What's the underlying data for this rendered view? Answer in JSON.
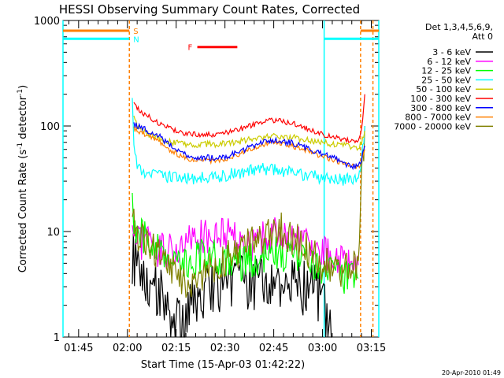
{
  "chart_data": {
    "type": "line",
    "title": "HESSI Observing Summary Count Rates, Corrected",
    "xlabel": "Start Time (15-Apr-03 01:42:22)",
    "ylabel_main": "Corrected Count Rate (s",
    "ylabel_sup1": "-1",
    "ylabel_mid": " detector",
    "ylabel_sup2": "-1",
    "ylabel_end": ")",
    "yscale": "log",
    "ylim": [
      1,
      1000
    ],
    "xlim_minutes": [
      100.2,
      197.3
    ],
    "x_ticks": [
      {
        "label": "01:45",
        "minutes": 105
      },
      {
        "label": "02:00",
        "minutes": 120
      },
      {
        "label": "02:15",
        "minutes": 135
      },
      {
        "label": "02:30",
        "minutes": 150
      },
      {
        "label": "02:45",
        "minutes": 165
      },
      {
        "label": "03:00",
        "minutes": 180
      },
      {
        "label": "03:15",
        "minutes": 195
      }
    ],
    "y_ticks": [
      {
        "label": "1",
        "value": 1
      },
      {
        "label": "10",
        "value": 10
      },
      {
        "label": "100",
        "value": 100
      },
      {
        "label": "1000",
        "value": 1000
      }
    ],
    "legend_header": [
      "Det 1,3,4,5,6,9,",
      "Att 0"
    ],
    "legend_position": "right",
    "series": [
      {
        "name": "3 - 6 keV",
        "color": "#000000",
        "x": [
          121.5,
          122.5,
          124,
          126,
          128,
          130,
          132,
          134,
          136,
          138,
          140,
          142,
          144,
          146,
          148,
          150,
          152,
          154,
          156,
          158,
          160,
          162,
          164,
          166,
          168,
          170,
          172,
          174,
          176,
          178,
          180,
          181,
          182,
          183
        ],
        "y": [
          6,
          5,
          4.5,
          3.8,
          3.2,
          2.7,
          2.1,
          1.5,
          1.2,
          1.3,
          2.0,
          1.7,
          2.5,
          3.2,
          2.8,
          3.5,
          2.7,
          3.3,
          3.0,
          2.8,
          3.1,
          3.6,
          3.4,
          3.0,
          3.3,
          3.6,
          3.2,
          3.0,
          3.1,
          2.9,
          2.0,
          1.5,
          1.2,
          1.0
        ]
      },
      {
        "name": "6 - 12 keV",
        "color": "#ff00ff",
        "x": [
          121.5,
          122,
          124,
          126,
          128,
          130,
          132,
          134,
          136,
          138,
          140,
          142,
          144,
          146,
          148,
          150,
          152,
          154,
          156,
          158,
          160,
          162,
          164,
          166,
          168,
          170,
          172,
          174,
          176,
          178,
          180,
          182,
          184,
          186,
          188,
          190,
          191
        ],
        "y": [
          8,
          8.5,
          8,
          7.5,
          7,
          6.8,
          6.5,
          6.5,
          7,
          7.5,
          8,
          8.5,
          9,
          10,
          10.5,
          9.5,
          9,
          8.5,
          7.5,
          7,
          7.5,
          8.5,
          9.5,
          10,
          10,
          9.5,
          9,
          8,
          7.5,
          7,
          6.5,
          6,
          5.5,
          5.2,
          5,
          4.8,
          4.8
        ]
      },
      {
        "name": "12 - 25 keV",
        "color": "#00ff00",
        "x": [
          121.5,
          122,
          123,
          124,
          126,
          128,
          130,
          132,
          134,
          136,
          138,
          140,
          142,
          144,
          146,
          148,
          150,
          152,
          154,
          156,
          158,
          160,
          162,
          164,
          166,
          168,
          170,
          172,
          174,
          176,
          178,
          180,
          182,
          184,
          186,
          188,
          190,
          191
        ],
        "y": [
          18,
          12,
          10,
          9.5,
          8.5,
          7.5,
          6.5,
          5.8,
          5.3,
          5.0,
          5.0,
          5.2,
          5.5,
          5.8,
          5.8,
          5.5,
          5.3,
          5.2,
          5.0,
          5.0,
          5.2,
          5.5,
          5.8,
          6.0,
          6.0,
          5.8,
          5.6,
          5.4,
          5.2,
          5.0,
          4.8,
          4.5,
          4.3,
          4.0,
          3.8,
          3.7,
          3.6,
          3.6
        ]
      },
      {
        "name": "25 - 50 keV",
        "color": "#00ffff",
        "x": [
          121.5,
          122,
          123,
          124,
          126,
          128,
          130,
          132,
          134,
          136,
          138,
          140,
          142,
          144,
          146,
          148,
          150,
          152,
          154,
          156,
          158,
          160,
          162,
          164,
          166,
          168,
          170,
          172,
          174,
          176,
          178,
          180,
          182,
          184,
          186,
          188,
          189,
          190,
          191,
          192,
          193
        ],
        "y": [
          200,
          60,
          42,
          38,
          36,
          35,
          34,
          33,
          33,
          32,
          32,
          32,
          32,
          32,
          32,
          33,
          34,
          35,
          36,
          37,
          38,
          38,
          39,
          39,
          38,
          37,
          36,
          35,
          34,
          34,
          33,
          32,
          32,
          32,
          31,
          31,
          31,
          32,
          34,
          45,
          100
        ]
      },
      {
        "name": "50 - 100 keV",
        "color": "#cccc00",
        "x": [
          122,
          123,
          124,
          126,
          128,
          130,
          132,
          134,
          136,
          138,
          140,
          142,
          144,
          146,
          148,
          150,
          152,
          154,
          156,
          158,
          160,
          162,
          164,
          166,
          168,
          170,
          172,
          174,
          176,
          178,
          180,
          182,
          184,
          186,
          188,
          189,
          190,
          191,
          192,
          193
        ],
        "y": [
          120,
          100,
          90,
          85,
          80,
          75,
          72,
          70,
          68,
          67,
          67,
          67,
          67,
          67,
          67,
          68,
          69,
          71,
          73,
          75,
          77,
          79,
          80,
          80,
          79,
          78,
          77,
          75,
          73,
          71,
          70,
          68,
          67,
          66,
          64,
          63,
          62,
          62,
          70,
          90
        ]
      },
      {
        "name": "100 - 300 keV",
        "color": "#ff0000",
        "x": [
          122,
          123,
          124,
          126,
          128,
          130,
          132,
          134,
          136,
          138,
          140,
          142,
          144,
          146,
          148,
          150,
          152,
          154,
          156,
          158,
          160,
          162,
          164,
          166,
          168,
          170,
          172,
          174,
          176,
          178,
          180,
          182,
          184,
          186,
          188,
          189,
          190,
          191,
          192,
          193
        ],
        "y": [
          175,
          150,
          135,
          125,
          115,
          105,
          98,
          92,
          88,
          85,
          84,
          83,
          83,
          83,
          84,
          86,
          89,
          92,
          96,
          101,
          106,
          110,
          112,
          112,
          110,
          107,
          103,
          98,
          93,
          88,
          84,
          80,
          77,
          75,
          73,
          72,
          72,
          74,
          90,
          200
        ]
      },
      {
        "name": "300 - 800 keV",
        "color": "#0000ff",
        "x": [
          122,
          123,
          124,
          126,
          128,
          130,
          132,
          134,
          136,
          138,
          140,
          142,
          144,
          146,
          148,
          150,
          152,
          154,
          156,
          158,
          160,
          162,
          164,
          166,
          168,
          170,
          172,
          174,
          176,
          178,
          180,
          182,
          184,
          186,
          188,
          189,
          190,
          191,
          192,
          193
        ],
        "y": [
          105,
          100,
          98,
          92,
          85,
          78,
          70,
          63,
          57,
          53,
          51,
          50,
          50,
          50,
          50,
          51,
          53,
          56,
          60,
          64,
          68,
          71,
          73,
          73,
          72,
          70,
          67,
          64,
          60,
          57,
          55,
          52,
          49,
          46,
          43,
          42,
          42,
          42,
          48,
          65
        ]
      },
      {
        "name": "800 - 7000 keV",
        "color": "#ff8000",
        "x": [
          122,
          123,
          124,
          126,
          128,
          130,
          132,
          134,
          136,
          138,
          140,
          142,
          144,
          146,
          148,
          150,
          152,
          154,
          156,
          158,
          160,
          162,
          164,
          166,
          168,
          170,
          172,
          174,
          176,
          178,
          180,
          182,
          184,
          186,
          188,
          189,
          190,
          191,
          192,
          193
        ],
        "y": [
          95,
          90,
          87,
          82,
          76,
          70,
          63,
          57,
          53,
          50,
          48,
          47,
          47,
          47,
          47,
          48,
          50,
          53,
          57,
          61,
          64,
          67,
          69,
          69,
          68,
          66,
          63,
          60,
          57,
          54,
          52,
          49,
          47,
          45,
          43,
          42,
          41,
          41,
          46,
          60
        ]
      },
      {
        "name": "7000 - 20000 keV",
        "color": "#808000",
        "x": [
          121.5,
          122,
          123,
          124,
          126,
          128,
          130,
          132,
          134,
          136,
          138,
          140,
          142,
          144,
          146,
          148,
          150,
          152,
          154,
          156,
          158,
          160,
          162,
          164,
          166,
          168,
          170,
          172,
          174,
          176,
          178,
          180,
          182,
          184,
          186,
          188,
          190,
          191,
          192,
          193
        ],
        "y": [
          12,
          11,
          10,
          9,
          8,
          7.2,
          6,
          5,
          4.2,
          3.8,
          3.5,
          3.5,
          3.8,
          4.2,
          4.8,
          5.2,
          5.5,
          5.8,
          6.2,
          6.8,
          7.5,
          8.2,
          9,
          10,
          10.5,
          10,
          9.2,
          8.2,
          7.2,
          6.2,
          5.5,
          5.0,
          4.6,
          4.3,
          4.2,
          4.3,
          4.5,
          5,
          30,
          100
        ]
      }
    ],
    "flag_bars": [
      {
        "label": "S",
        "color": "#ff8000",
        "value_level": 800,
        "segments": [
          [
            100.2,
            120.6
          ],
          [
            191.7,
            197.3
          ]
        ]
      },
      {
        "label": "N",
        "color": "#00ffff",
        "value_level": 670,
        "segments": [
          [
            100.2,
            120.6
          ],
          [
            180.5,
            197.3
          ]
        ]
      },
      {
        "label": "F",
        "color": "#ff0000",
        "value_level": 560,
        "segments": [
          [
            141.5,
            153.8
          ]
        ]
      }
    ],
    "marker_lines": [
      {
        "color": "#00ffff",
        "style": "solid",
        "x": [
          100.2,
          180.5,
          197.3
        ]
      },
      {
        "color": "#ff8000",
        "style": "dashed",
        "x": [
          120.6,
          191.7,
          195.5
        ]
      }
    ]
  },
  "footer": {
    "date_stamp": "20-Apr-2010 01:49"
  }
}
